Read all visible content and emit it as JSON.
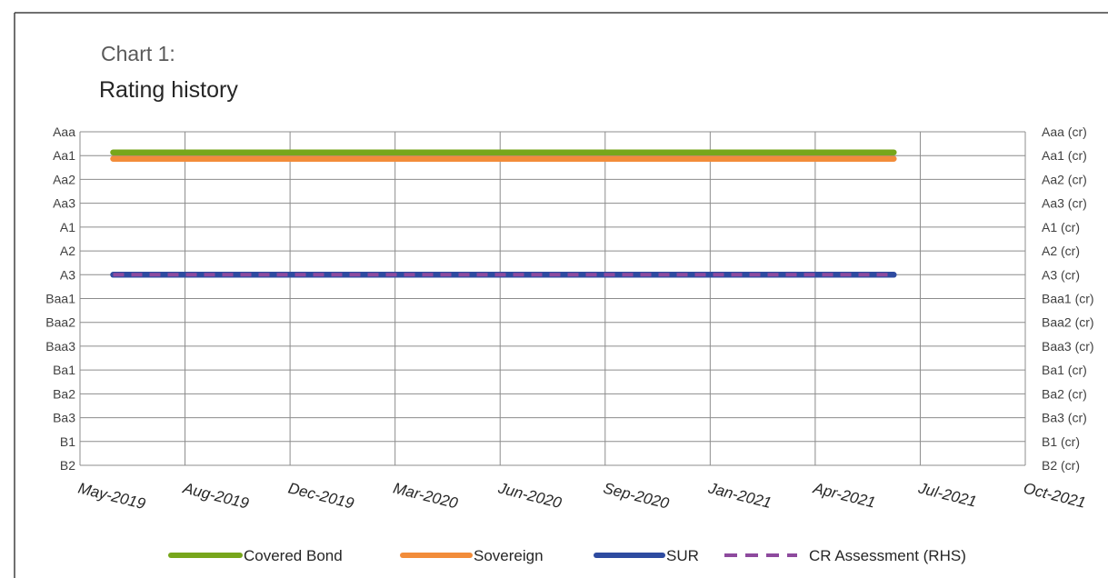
{
  "chart_data": {
    "type": "line",
    "title": "Chart 1:",
    "subtitle": "Rating history",
    "y_categories": [
      "Aaa",
      "Aa1",
      "Aa2",
      "Aa3",
      "A1",
      "A2",
      "A3",
      "Baa1",
      "Baa2",
      "Baa3",
      "Ba1",
      "Ba2",
      "Ba3",
      "B1",
      "B2"
    ],
    "y_categories_right": [
      "Aaa (cr)",
      "Aa1 (cr)",
      "Aa2 (cr)",
      "Aa3 (cr)",
      "A1 (cr)",
      "A2 (cr)",
      "A3 (cr)",
      "Baa1 (cr)",
      "Baa2 (cr)",
      "Baa3 (cr)",
      "Ba1 (cr)",
      "Ba2 (cr)",
      "Ba3 (cr)",
      "B1 (cr)",
      "B2 (cr)"
    ],
    "x_ticks": [
      "May-2019",
      "Aug-2019",
      "Dec-2019",
      "Mar-2020",
      "Jun-2020",
      "Sep-2020",
      "Jan-2021",
      "Apr-2021",
      "Jul-2021",
      "Oct-2021"
    ],
    "xlim": [
      "2019-05-01",
      "2021-10-01"
    ],
    "grid": true,
    "legend_position": "bottom",
    "series": [
      {
        "name": "Covered Bond",
        "color": "#77A61B",
        "style": "solid",
        "axis": "left",
        "x": [
          "2019-06-01",
          "2021-05-31"
        ],
        "y": [
          "Aa1",
          "Aa1"
        ]
      },
      {
        "name": "Sovereign",
        "color": "#F28C3A",
        "style": "solid",
        "axis": "left",
        "x": [
          "2019-06-01",
          "2021-05-31"
        ],
        "y": [
          "Aa1",
          "Aa1"
        ]
      },
      {
        "name": "SUR",
        "color": "#2E4BA0",
        "style": "solid",
        "axis": "left",
        "x": [
          "2019-06-01",
          "2021-05-31"
        ],
        "y": [
          "A3",
          "A3"
        ]
      },
      {
        "name": "CR Assessment (RHS)",
        "color": "#8E4A9E",
        "style": "dashed",
        "axis": "right",
        "x": [
          "2019-06-01",
          "2021-05-31"
        ],
        "y": [
          "A3 (cr)",
          "A3 (cr)"
        ]
      }
    ]
  }
}
